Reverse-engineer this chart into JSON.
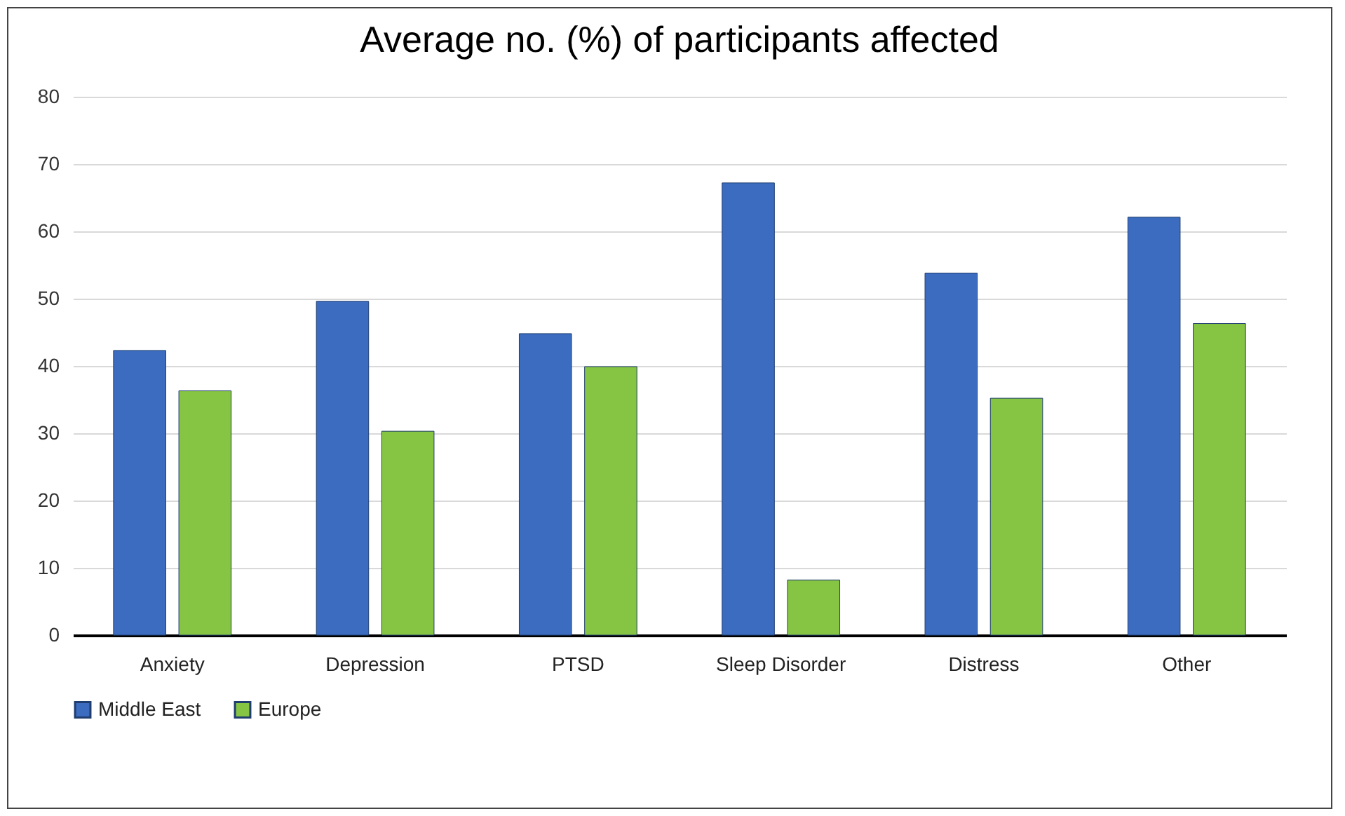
{
  "chart_data": {
    "type": "bar",
    "title": "Average no. (%) of participants affected",
    "categories": [
      "Anxiety",
      "Depression",
      "PTSD",
      "Sleep Disorder",
      "Distress",
      "Other"
    ],
    "series": [
      {
        "name": "Middle East",
        "color": "#3b6cc0",
        "values": [
          42.3,
          49.6,
          44.8,
          67.2,
          53.8,
          62.1
        ]
      },
      {
        "name": "Europe",
        "color": "#86c443",
        "values": [
          36.3,
          30.3,
          39.9,
          8.2,
          35.2,
          46.3
        ]
      }
    ],
    "ylim": [
      0,
      80
    ],
    "yticks": [
      0,
      10,
      20,
      30,
      40,
      50,
      60,
      70,
      80
    ],
    "grid": "y",
    "legend": "bottom"
  }
}
